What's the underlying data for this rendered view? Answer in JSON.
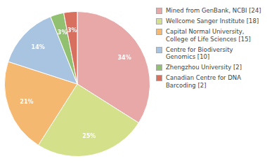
{
  "chart_data": {
    "type": "pie",
    "categories": [
      "Mined from GenBank, NCBI [24]",
      "Wellcome Sanger Institute [18]",
      "Capital Normal University,\nCollege of Life Sciences [15]",
      "Centre for Biodiversity\nGenomics [10]",
      "Zhengzhou University [2]",
      "Canadian Centre for DNA\nBarcoding [2]"
    ],
    "values": [
      34,
      25,
      21,
      14,
      3,
      3
    ],
    "value_labels": [
      "34%",
      "25%",
      "21%",
      "14%",
      "3%",
      "3%"
    ],
    "colors": [
      "#e8a8a8",
      "#d4e08a",
      "#f5b870",
      "#a8c4e0",
      "#90c070",
      "#d87060"
    ],
    "data_labels": true,
    "legend": "right"
  }
}
